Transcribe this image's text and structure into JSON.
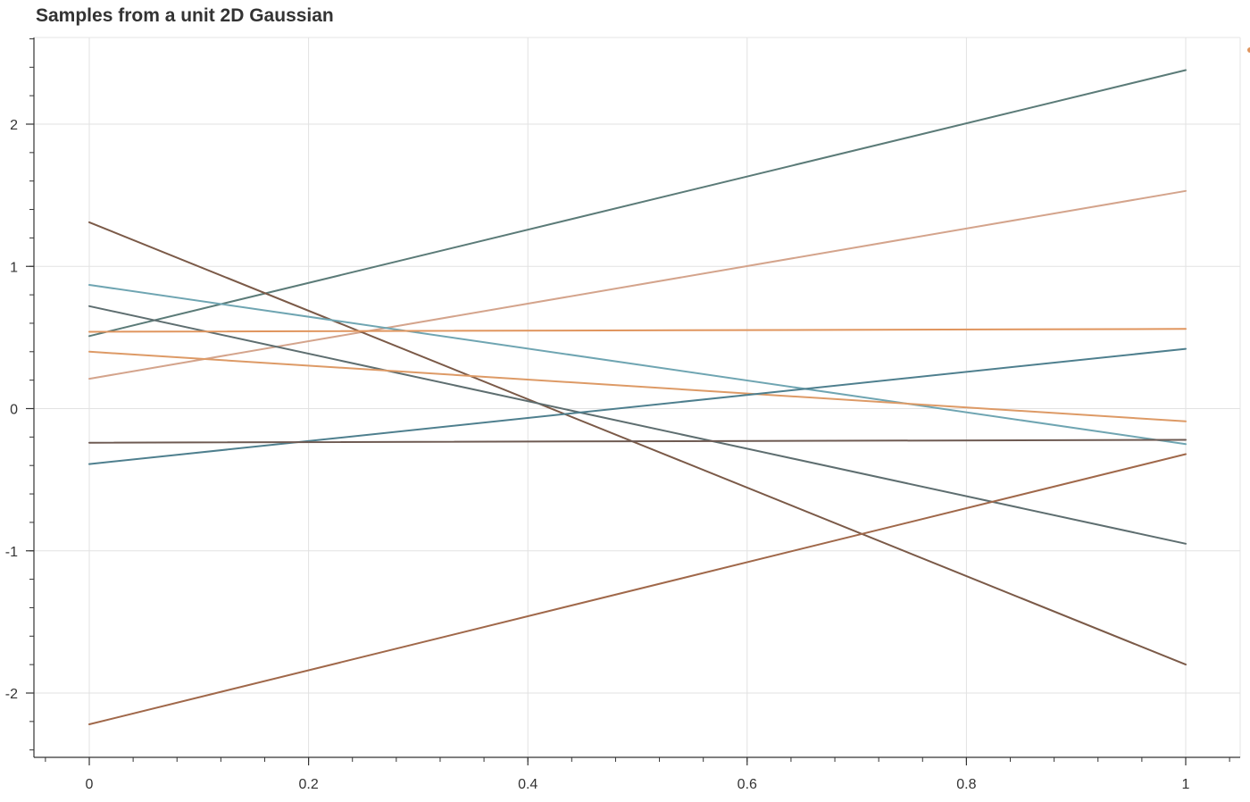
{
  "chart_data": {
    "type": "line",
    "title": "Samples from a unit 2D Gaussian",
    "xlabel": "",
    "ylabel": "",
    "xlim": [
      0,
      1
    ],
    "ylim": [
      -2.45,
      2.6
    ],
    "x_ticks": [
      0,
      0.2,
      0.4,
      0.6,
      0.8,
      1
    ],
    "x_tick_labels": [
      "0",
      "0.2",
      "0.4",
      "0.6",
      "0.8",
      "1"
    ],
    "y_ticks": [
      -2,
      -1,
      0,
      1,
      2
    ],
    "y_tick_labels": [
      "-2",
      "-1",
      "0",
      "1",
      "2"
    ],
    "grid": true,
    "x": [
      0,
      1
    ],
    "series": [
      {
        "values": [
          0.51,
          2.38
        ],
        "color": "#5b7b78"
      },
      {
        "values": [
          0.21,
          1.53
        ],
        "color": "#d4a48c"
      },
      {
        "values": [
          1.31,
          -1.8
        ],
        "color": "#7b5a48"
      },
      {
        "values": [
          0.87,
          -0.25
        ],
        "color": "#6fa5b2"
      },
      {
        "values": [
          0.72,
          -0.95
        ],
        "color": "#5e6e70"
      },
      {
        "values": [
          0.54,
          0.56
        ],
        "color": "#e0955e"
      },
      {
        "values": [
          0.4,
          -0.09
        ],
        "color": "#dd9a66"
      },
      {
        "values": [
          -0.39,
          0.42
        ],
        "color": "#4e7f8e"
      },
      {
        "values": [
          -0.24,
          -0.22
        ],
        "color": "#6e5a52"
      },
      {
        "values": [
          -2.22,
          -0.32
        ],
        "color": "#a0684a"
      }
    ]
  }
}
